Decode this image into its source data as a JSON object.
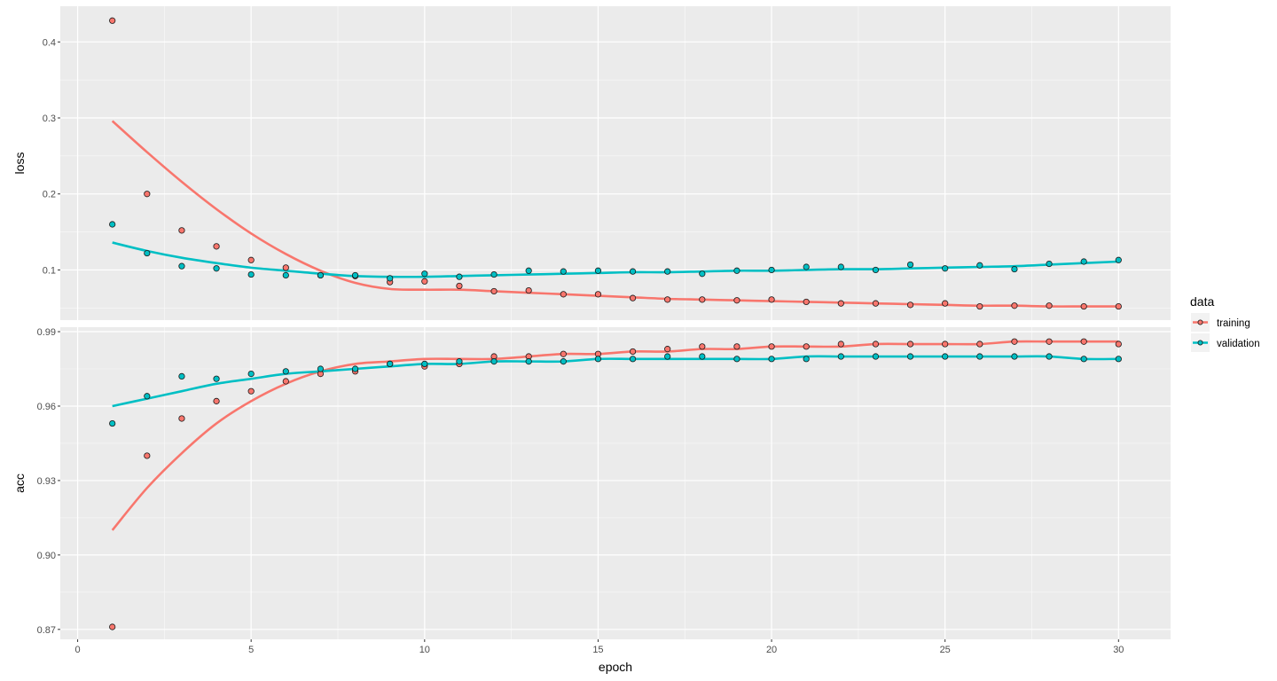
{
  "chart_data": {
    "type": "scatter",
    "subtype": "faceted scatter with smoothed lines",
    "title": "",
    "xlabel": "epoch",
    "x_ticks": [
      0,
      5,
      10,
      15,
      20,
      25,
      30
    ],
    "xlim": [
      -0.5,
      31.5
    ],
    "legend": {
      "title": "data",
      "position": "right",
      "entries": [
        {
          "label": "training",
          "color": "#F8766D"
        },
        {
          "label": "validation",
          "color": "#00BFC4"
        }
      ]
    },
    "grid": true,
    "background": "#EBEBEB",
    "x": [
      1,
      2,
      3,
      4,
      5,
      6,
      7,
      8,
      9,
      10,
      11,
      12,
      13,
      14,
      15,
      16,
      17,
      18,
      19,
      20,
      21,
      22,
      23,
      24,
      25,
      26,
      27,
      28,
      29,
      30
    ],
    "panels": [
      {
        "name": "loss",
        "ylabel": "loss",
        "y_ticks": [
          0.1,
          0.2,
          0.3,
          0.4
        ],
        "y_tick_labels": [
          "0.1",
          "0.2",
          "0.3",
          "0.4"
        ],
        "ylim": [
          0.034,
          0.447
        ],
        "series": [
          {
            "name": "training",
            "values": [
              0.428,
              0.2,
              0.152,
              0.131,
              0.113,
              0.103,
              0.093,
              0.092,
              0.084,
              0.085,
              0.079,
              0.072,
              0.073,
              0.068,
              0.068,
              0.063,
              0.061,
              0.061,
              0.06,
              0.061,
              0.058,
              0.056,
              0.056,
              0.054,
              0.056,
              0.052,
              0.053,
              0.053,
              0.052,
              0.052
            ],
            "smooth": [
              0.296,
              0.255,
              0.216,
              0.18,
              0.148,
              0.121,
              0.099,
              0.083,
              0.075,
              0.074,
              0.074,
              0.072,
              0.07,
              0.068,
              0.066,
              0.064,
              0.062,
              0.061,
              0.06,
              0.059,
              0.058,
              0.057,
              0.056,
              0.055,
              0.054,
              0.053,
              0.053,
              0.052,
              0.052,
              0.052
            ]
          },
          {
            "name": "validation",
            "values": [
              0.16,
              0.122,
              0.105,
              0.102,
              0.094,
              0.093,
              0.093,
              0.093,
              0.089,
              0.095,
              0.091,
              0.094,
              0.099,
              0.098,
              0.099,
              0.098,
              0.098,
              0.095,
              0.099,
              0.1,
              0.104,
              0.104,
              0.1,
              0.107,
              0.102,
              0.106,
              0.101,
              0.108,
              0.111,
              0.113
            ],
            "smooth": [
              0.136,
              0.125,
              0.116,
              0.109,
              0.103,
              0.099,
              0.095,
              0.092,
              0.091,
              0.091,
              0.092,
              0.093,
              0.094,
              0.095,
              0.096,
              0.097,
              0.097,
              0.098,
              0.099,
              0.099,
              0.1,
              0.101,
              0.101,
              0.102,
              0.103,
              0.104,
              0.105,
              0.107,
              0.109,
              0.111
            ]
          }
        ]
      },
      {
        "name": "acc",
        "ylabel": "acc",
        "y_ticks": [
          0.87,
          0.9,
          0.93,
          0.96,
          0.99
        ],
        "y_tick_labels": [
          "0.87",
          "0.90",
          "0.93",
          "0.96",
          "0.99"
        ],
        "ylim": [
          0.866,
          0.9918
        ],
        "series": [
          {
            "name": "training",
            "values": [
              0.871,
              0.94,
              0.955,
              0.962,
              0.966,
              0.97,
              0.973,
              0.974,
              0.977,
              0.976,
              0.977,
              0.98,
              0.98,
              0.981,
              0.981,
              0.982,
              0.983,
              0.984,
              0.984,
              0.984,
              0.984,
              0.985,
              0.985,
              0.985,
              0.985,
              0.985,
              0.986,
              0.986,
              0.986,
              0.985
            ],
            "smooth": [
              0.91,
              0.927,
              0.941,
              0.953,
              0.962,
              0.969,
              0.974,
              0.977,
              0.978,
              0.979,
              0.979,
              0.979,
              0.98,
              0.981,
              0.981,
              0.982,
              0.982,
              0.983,
              0.983,
              0.984,
              0.984,
              0.984,
              0.985,
              0.985,
              0.985,
              0.985,
              0.986,
              0.986,
              0.986,
              0.986
            ]
          },
          {
            "name": "validation",
            "values": [
              0.953,
              0.964,
              0.972,
              0.971,
              0.973,
              0.974,
              0.975,
              0.975,
              0.977,
              0.977,
              0.978,
              0.978,
              0.978,
              0.978,
              0.979,
              0.979,
              0.98,
              0.98,
              0.979,
              0.979,
              0.979,
              0.98,
              0.98,
              0.98,
              0.98,
              0.98,
              0.98,
              0.98,
              0.979,
              0.979
            ],
            "smooth": [
              0.96,
              0.963,
              0.966,
              0.969,
              0.971,
              0.973,
              0.974,
              0.975,
              0.976,
              0.977,
              0.977,
              0.978,
              0.978,
              0.978,
              0.979,
              0.979,
              0.979,
              0.979,
              0.979,
              0.979,
              0.98,
              0.98,
              0.98,
              0.98,
              0.98,
              0.98,
              0.98,
              0.98,
              0.979,
              0.979
            ]
          }
        ]
      }
    ]
  }
}
